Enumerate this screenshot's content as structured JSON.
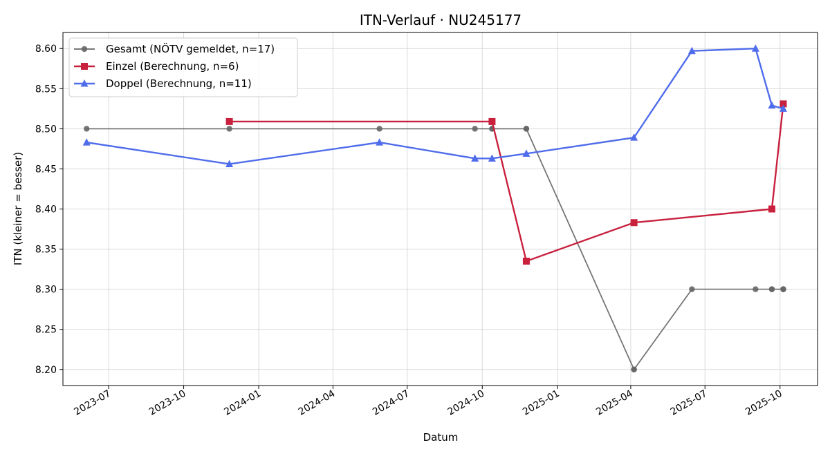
{
  "chart_data": {
    "type": "line",
    "title": "ITN-Verlauf · NU245177",
    "xlabel": "Datum",
    "ylabel": "ITN  (kleiner = besser)",
    "x_type": "date",
    "xlim": [
      "2023-05-06",
      "2025-11-16"
    ],
    "ylim": [
      8.18,
      8.62
    ],
    "x_ticks": [
      "2023-07-01",
      "2023-10-01",
      "2024-01-01",
      "2024-04-01",
      "2024-07-01",
      "2024-10-01",
      "2025-01-01",
      "2025-04-01",
      "2025-07-01",
      "2025-10-01"
    ],
    "x_tick_labels": [
      "2023-07",
      "2023-10",
      "2024-01",
      "2024-04",
      "2024-07",
      "2024-10",
      "2025-01",
      "2025-04",
      "2025-07",
      "2025-10"
    ],
    "y_ticks": [
      8.2,
      8.25,
      8.3,
      8.35,
      8.4,
      8.45,
      8.5,
      8.55,
      8.6
    ],
    "y_tick_labels": [
      "8.20",
      "8.25",
      "8.30",
      "8.35",
      "8.40",
      "8.45",
      "8.50",
      "8.55",
      "8.60"
    ],
    "grid": true,
    "legend_position": "top-left",
    "series": [
      {
        "name": "Gesamt (NÖTV gemeldet, n=17)",
        "color": "#666666",
        "marker": "circle",
        "points": [
          {
            "x": "2023-06-04",
            "y": 8.5
          },
          {
            "x": "2023-11-26",
            "y": 8.5
          },
          {
            "x": "2024-05-28",
            "y": 8.5
          },
          {
            "x": "2024-09-22",
            "y": 8.5
          },
          {
            "x": "2024-10-13",
            "y": 8.5
          },
          {
            "x": "2024-10-13",
            "y": 8.5
          },
          {
            "x": "2024-11-24",
            "y": 8.5
          },
          {
            "x": "2024-11-24",
            "y": 8.5
          },
          {
            "x": "2025-04-05",
            "y": 8.2
          },
          {
            "x": "2025-04-05",
            "y": 8.2
          },
          {
            "x": "2025-06-15",
            "y": 8.3
          },
          {
            "x": "2025-09-01",
            "y": 8.3
          },
          {
            "x": "2025-09-21",
            "y": 8.3
          },
          {
            "x": "2025-09-21",
            "y": 8.3
          },
          {
            "x": "2025-10-05",
            "y": 8.3
          },
          {
            "x": "2025-10-05",
            "y": 8.3
          },
          {
            "x": "2025-10-05",
            "y": 8.3
          }
        ]
      },
      {
        "name": "Einzel (Berechnung, n=6)",
        "color": "#c8203d",
        "marker": "square",
        "points": [
          {
            "x": "2023-11-26",
            "y": 8.509
          },
          {
            "x": "2024-10-13",
            "y": 8.509
          },
          {
            "x": "2024-11-24",
            "y": 8.335
          },
          {
            "x": "2025-04-05",
            "y": 8.383
          },
          {
            "x": "2025-09-21",
            "y": 8.4
          },
          {
            "x": "2025-10-05",
            "y": 8.531
          }
        ]
      },
      {
        "name": "Doppel (Berechnung, n=11)",
        "color": "#4f6ceb",
        "marker": "triangle",
        "points": [
          {
            "x": "2023-06-04",
            "y": 8.483
          },
          {
            "x": "2023-11-26",
            "y": 8.456
          },
          {
            "x": "2024-05-28",
            "y": 8.483
          },
          {
            "x": "2024-09-22",
            "y": 8.463
          },
          {
            "x": "2024-10-13",
            "y": 8.463
          },
          {
            "x": "2024-11-24",
            "y": 8.469
          },
          {
            "x": "2025-04-05",
            "y": 8.489
          },
          {
            "x": "2025-06-15",
            "y": 8.597
          },
          {
            "x": "2025-09-01",
            "y": 8.6
          },
          {
            "x": "2025-09-21",
            "y": 8.529
          },
          {
            "x": "2025-10-05",
            "y": 8.525
          }
        ]
      }
    ]
  }
}
